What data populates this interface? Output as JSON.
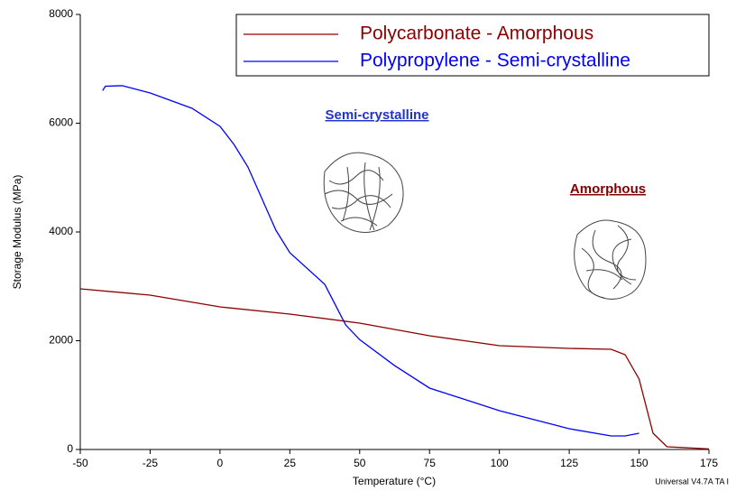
{
  "chart_data": {
    "type": "line",
    "xlabel": "Temperature (°C)",
    "ylabel": "Storage Modulus (MPa)",
    "footer": "Universal V4.7A TA I",
    "annotations": [
      {
        "text": "Semi-crystalline",
        "color": "#2233cc"
      },
      {
        "text": "Amorphous",
        "color": "#800000"
      }
    ],
    "xlim": [
      -50,
      175
    ],
    "xticks": [
      -50,
      -25,
      0,
      25,
      50,
      75,
      100,
      125,
      150,
      175
    ],
    "ylim": [
      0,
      8000
    ],
    "yticks": [
      0,
      2000,
      4000,
      6000,
      8000
    ],
    "legend": "top-right",
    "series": [
      {
        "name": "Polycarbonate - Amorphous",
        "color": "#8b0000",
        "x": [
          -50,
          -25,
          0,
          25,
          50,
          75,
          100,
          125,
          140,
          145,
          150,
          155,
          160,
          175
        ],
        "values": [
          2954,
          2838,
          2622,
          2490,
          2324,
          2091,
          1909,
          1859,
          1842,
          1743,
          1295,
          299,
          50,
          10
        ]
      },
      {
        "name": "Polypropylene - Semi-crystalline",
        "color": "#0000ff",
        "x": [
          -42,
          -41,
          -35,
          -25,
          -10,
          0,
          5,
          10,
          20,
          25,
          37.5,
          45,
          50,
          62.5,
          75,
          100,
          125,
          140,
          145,
          150
        ],
        "values": [
          6600,
          6680,
          6690,
          6556,
          6274,
          5942,
          5610,
          5195,
          4033,
          3618,
          3037,
          2290,
          2020,
          1543,
          1129,
          714,
          382,
          249,
          249,
          299
        ]
      }
    ]
  }
}
